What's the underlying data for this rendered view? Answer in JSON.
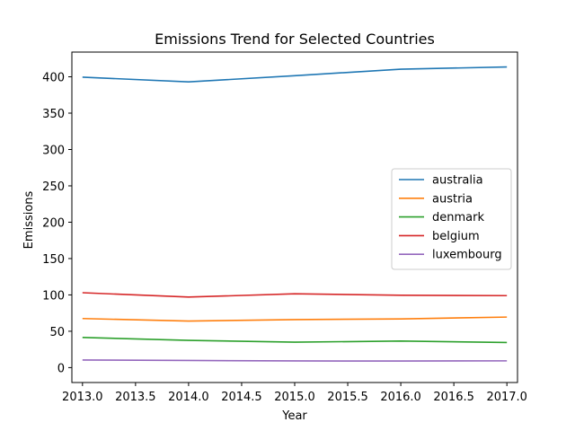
{
  "chart_data": {
    "type": "line",
    "title": "Emissions Trend for Selected Countries",
    "xlabel": "Year",
    "ylabel": "Emissions",
    "x": [
      2013,
      2014,
      2015,
      2016,
      2017
    ],
    "xlim": [
      2012.9,
      2017.1
    ],
    "ylim": [
      -20.5,
      434
    ],
    "xticks": [
      2013.0,
      2013.5,
      2014.0,
      2014.5,
      2015.0,
      2015.5,
      2016.0,
      2016.5,
      2017.0
    ],
    "xtick_labels": [
      "2013.0",
      "2013.5",
      "2014.0",
      "2014.5",
      "2015.0",
      "2015.5",
      "2016.0",
      "2016.5",
      "2017.0"
    ],
    "yticks": [
      0,
      50,
      100,
      150,
      200,
      250,
      300,
      350,
      400
    ],
    "ytick_labels": [
      "0",
      "50",
      "100",
      "150",
      "200",
      "250",
      "300",
      "350",
      "400"
    ],
    "grid": false,
    "legend_position": "center-right",
    "series": [
      {
        "name": "australia",
        "color": "#1f77b4",
        "values": [
          399.5,
          393.0,
          401.5,
          410.5,
          413.5
        ]
      },
      {
        "name": "austria",
        "color": "#ff7f0e",
        "values": [
          67.5,
          64.0,
          66.0,
          67.0,
          69.5
        ]
      },
      {
        "name": "denmark",
        "color": "#2ca02c",
        "values": [
          41.5,
          37.5,
          35.0,
          36.5,
          34.5
        ]
      },
      {
        "name": "belgium",
        "color": "#d62728",
        "values": [
          103.0,
          97.0,
          101.5,
          99.5,
          99.0
        ]
      },
      {
        "name": "luxembourg",
        "color": "#9467bd",
        "values": [
          10.5,
          9.8,
          9.2,
          9.0,
          9.3
        ]
      }
    ]
  }
}
